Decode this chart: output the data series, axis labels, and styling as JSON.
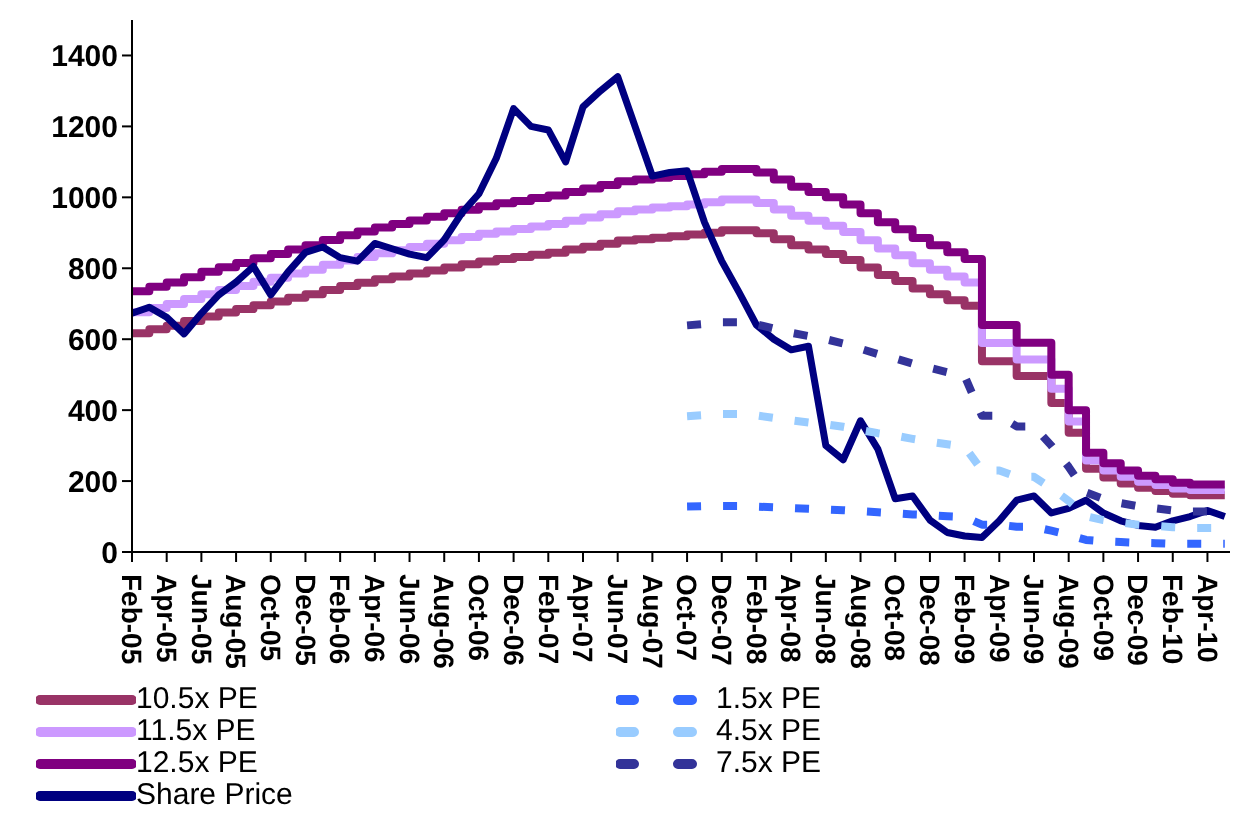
{
  "chart_data": {
    "type": "line",
    "x": [
      "2005-02",
      "2005-03",
      "2005-04",
      "2005-05",
      "2005-06",
      "2005-07",
      "2005-08",
      "2005-09",
      "2005-10",
      "2005-11",
      "2005-12",
      "2006-01",
      "2006-02",
      "2006-03",
      "2006-04",
      "2006-05",
      "2006-06",
      "2006-07",
      "2006-08",
      "2006-09",
      "2006-10",
      "2006-11",
      "2006-12",
      "2007-01",
      "2007-02",
      "2007-03",
      "2007-04",
      "2007-05",
      "2007-06",
      "2007-07",
      "2007-08",
      "2007-09",
      "2007-10",
      "2007-11",
      "2007-12",
      "2008-01",
      "2008-02",
      "2008-03",
      "2008-04",
      "2008-05",
      "2008-06",
      "2008-07",
      "2008-08",
      "2008-09",
      "2008-10",
      "2008-11",
      "2008-12",
      "2009-01",
      "2009-02",
      "2009-03",
      "2009-04",
      "2009-05",
      "2009-06",
      "2009-07",
      "2009-08",
      "2009-09",
      "2009-10",
      "2009-11",
      "2009-12",
      "2010-01",
      "2010-02",
      "2010-03",
      "2010-04",
      "2010-05"
    ],
    "series": [
      {
        "name": "10.5x PE",
        "type": "step",
        "color": "#993366",
        "values": [
          617,
          628,
          638,
          651,
          664,
          675,
          685,
          696,
          706,
          717,
          727,
          739,
          750,
          759,
          769,
          777,
          785,
          794,
          802,
          811,
          819,
          826,
          832,
          838,
          844,
          853,
          861,
          869,
          878,
          882,
          886,
          890,
          895,
          900,
          907,
          907,
          899,
          882,
          865,
          853,
          840,
          823,
          802,
          781,
          764,
          743,
          727,
          710,
          694,
          538,
          538,
          496,
          496,
          420,
          336,
          235,
          210,
          193,
          181,
          172,
          164,
          160,
          160,
          160
        ]
      },
      {
        "name": "11.5x PE",
        "type": "step",
        "color": "#cc99ff",
        "values": [
          676,
          688,
          699,
          713,
          727,
          739,
          750,
          762,
          773,
          785,
          796,
          810,
          822,
          832,
          842,
          851,
          860,
          869,
          879,
          888,
          897,
          904,
          911,
          918,
          925,
          934,
          943,
          952,
          961,
          966,
          971,
          975,
          980,
          986,
          994,
          994,
          984,
          966,
          948,
          934,
          920,
          902,
          879,
          856,
          837,
          814,
          796,
          777,
          760,
          589,
          589,
          543,
          543,
          460,
          368,
          258,
          230,
          212,
          198,
          189,
          179,
          175,
          175,
          175
        ]
      },
      {
        "name": "12.5x PE",
        "type": "step",
        "color": "#800080",
        "values": [
          735,
          748,
          760,
          775,
          790,
          803,
          815,
          828,
          840,
          853,
          865,
          880,
          893,
          904,
          915,
          925,
          935,
          945,
          955,
          965,
          975,
          983,
          990,
          998,
          1005,
          1015,
          1025,
          1035,
          1045,
          1050,
          1055,
          1060,
          1065,
          1072,
          1080,
          1080,
          1070,
          1050,
          1030,
          1015,
          1000,
          980,
          955,
          930,
          910,
          885,
          865,
          845,
          826,
          640,
          640,
          590,
          590,
          500,
          400,
          280,
          250,
          230,
          215,
          205,
          195,
          190,
          190,
          190
        ]
      },
      {
        "name": "Share Price",
        "type": "line",
        "color": "#000080",
        "values": [
          673,
          690,
          662,
          615,
          673,
          725,
          761,
          805,
          725,
          790,
          845,
          860,
          830,
          820,
          870,
          855,
          840,
          830,
          880,
          955,
          1010,
          1110,
          1250,
          1200,
          1190,
          1100,
          1255,
          1300,
          1340,
          1200,
          1060,
          1070,
          1075,
          930,
          820,
          732,
          640,
          600,
          570,
          580,
          300,
          260,
          370,
          290,
          150,
          158,
          90,
          55,
          45,
          41,
          88,
          146,
          158,
          110,
          123,
          146,
          110,
          88,
          75,
          70,
          88,
          100,
          117,
          100
        ]
      },
      {
        "name": "1.5x PE",
        "type": "line",
        "line_style": "dashed",
        "color": "#3366ff",
        "values": [
          null,
          null,
          null,
          null,
          null,
          null,
          null,
          null,
          null,
          null,
          null,
          null,
          null,
          null,
          null,
          null,
          null,
          null,
          null,
          null,
          null,
          null,
          null,
          null,
          null,
          null,
          null,
          null,
          null,
          null,
          null,
          null,
          128,
          129,
          130,
          130,
          128,
          126,
          124,
          122,
          120,
          118,
          115,
          112,
          109,
          106,
          104,
          101,
          99,
          77,
          77,
          71,
          71,
          60,
          48,
          34,
          30,
          28,
          26,
          25,
          23,
          23,
          23,
          23
        ]
      },
      {
        "name": "4.5x PE",
        "type": "line",
        "line_style": "dashed",
        "color": "#99ccff",
        "values": [
          null,
          null,
          null,
          null,
          null,
          null,
          null,
          null,
          null,
          null,
          null,
          null,
          null,
          null,
          null,
          null,
          null,
          null,
          null,
          null,
          null,
          null,
          null,
          null,
          null,
          null,
          null,
          null,
          null,
          null,
          null,
          null,
          383,
          386,
          389,
          389,
          385,
          378,
          371,
          365,
          360,
          353,
          344,
          335,
          328,
          319,
          311,
          304,
          297,
          230,
          230,
          212,
          212,
          180,
          144,
          101,
          90,
          83,
          77,
          74,
          70,
          68,
          68,
          68
        ]
      },
      {
        "name": "7.5x PE",
        "type": "line",
        "line_style": "dashed",
        "color": "#333399",
        "values": [
          null,
          null,
          null,
          null,
          null,
          null,
          null,
          null,
          null,
          null,
          null,
          null,
          null,
          null,
          null,
          null,
          null,
          null,
          null,
          null,
          null,
          null,
          null,
          null,
          null,
          null,
          null,
          null,
          null,
          null,
          null,
          null,
          639,
          643,
          648,
          648,
          642,
          630,
          618,
          609,
          600,
          588,
          573,
          558,
          546,
          531,
          519,
          507,
          496,
          384,
          384,
          354,
          354,
          300,
          240,
          168,
          150,
          138,
          129,
          123,
          117,
          114,
          114,
          114
        ]
      }
    ],
    "xlim": [
      "2005-02",
      "2010-05-10"
    ],
    "xticks": [
      {
        "value": "2005-02",
        "label": "Feb-05"
      },
      {
        "value": "2005-04",
        "label": "Apr-05"
      },
      {
        "value": "2005-06",
        "label": "Jun-05"
      },
      {
        "value": "2005-08",
        "label": "Aug-05"
      },
      {
        "value": "2005-10",
        "label": "Oct-05"
      },
      {
        "value": "2005-12",
        "label": "Dec-05"
      },
      {
        "value": "2006-02",
        "label": "Feb-06"
      },
      {
        "value": "2006-04",
        "label": "Apr-06"
      },
      {
        "value": "2006-06",
        "label": "Jun-06"
      },
      {
        "value": "2006-08",
        "label": "Aug-06"
      },
      {
        "value": "2006-10",
        "label": "Oct-06"
      },
      {
        "value": "2006-12",
        "label": "Dec-06"
      },
      {
        "value": "2007-02",
        "label": "Feb-07"
      },
      {
        "value": "2007-04",
        "label": "Apr-07"
      },
      {
        "value": "2007-06",
        "label": "Jun-07"
      },
      {
        "value": "2007-08",
        "label": "Aug-07"
      },
      {
        "value": "2007-10",
        "label": "Oct-07"
      },
      {
        "value": "2007-12",
        "label": "Dec-07"
      },
      {
        "value": "2008-02",
        "label": "Feb-08"
      },
      {
        "value": "2008-04",
        "label": "Apr-08"
      },
      {
        "value": "2008-06",
        "label": "Jun-08"
      },
      {
        "value": "2008-08",
        "label": "Aug-08"
      },
      {
        "value": "2008-10",
        "label": "Oct-08"
      },
      {
        "value": "2008-12",
        "label": "Dec-08"
      },
      {
        "value": "2009-02",
        "label": "Feb-09"
      },
      {
        "value": "2009-04",
        "label": "Apr-09"
      },
      {
        "value": "2009-06",
        "label": "Jun-09"
      },
      {
        "value": "2009-08",
        "label": "Aug-09"
      },
      {
        "value": "2009-10",
        "label": "Oct-09"
      },
      {
        "value": "2009-12",
        "label": "Dec-09"
      },
      {
        "value": "2010-02",
        "label": "Feb-10"
      },
      {
        "value": "2010-04",
        "label": "Apr-10"
      }
    ],
    "ylim": [
      0,
      1500
    ],
    "yticks": [
      0,
      200,
      400,
      600,
      800,
      1000,
      1200,
      1400
    ],
    "grid": false,
    "legend": "bottom",
    "marker": "none"
  }
}
